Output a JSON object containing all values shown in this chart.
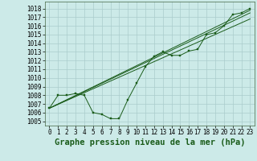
{
  "bg_color": "#cceae8",
  "line_color": "#1a5c1a",
  "grid_color": "#aacccc",
  "title": "Graphe pression niveau de la mer (hPa)",
  "xlim": [
    -0.5,
    23.5
  ],
  "ylim": [
    1004.5,
    1018.8
  ],
  "yticks": [
    1005,
    1006,
    1007,
    1008,
    1009,
    1010,
    1011,
    1012,
    1013,
    1014,
    1015,
    1016,
    1017,
    1018
  ],
  "xticks": [
    0,
    1,
    2,
    3,
    4,
    5,
    6,
    7,
    8,
    9,
    10,
    11,
    12,
    13,
    14,
    15,
    16,
    17,
    18,
    19,
    20,
    21,
    22,
    23
  ],
  "series_main": [
    1006.5,
    1008.0,
    1008.0,
    1008.2,
    1008.0,
    1006.0,
    1005.8,
    1005.3,
    1005.3,
    1007.5,
    1009.4,
    1011.3,
    1012.5,
    1013.0,
    1012.6,
    1012.6,
    1013.1,
    1013.3,
    1015.0,
    1015.2,
    1016.0,
    1017.3,
    1017.5,
    1018.0
  ],
  "series_lines": [
    [
      0,
      1006.5,
      23,
      1017.8
    ],
    [
      0,
      1006.5,
      23,
      1017.5
    ],
    [
      0,
      1006.5,
      23,
      1016.8
    ]
  ],
  "title_fontsize": 7.5,
  "tick_fontsize": 5.5
}
